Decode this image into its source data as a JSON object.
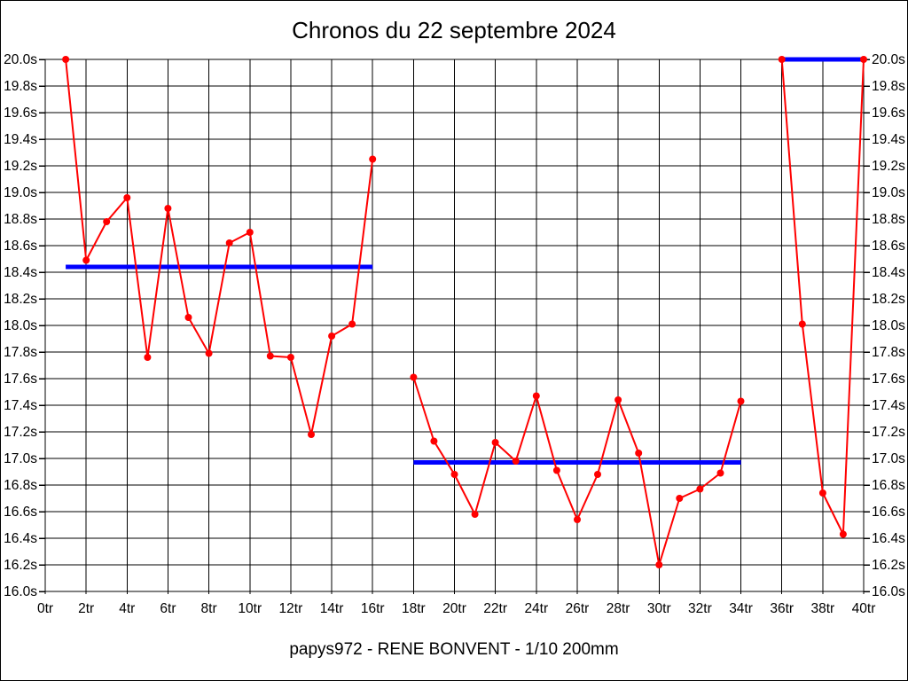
{
  "header": {
    "title": "Chronos du 22 septembre 2024"
  },
  "footer": {
    "caption": "papys972 - RENE BONVENT - 1/10 200mm"
  },
  "chart_data": {
    "type": "line",
    "title": "Chronos du 22 septembre 2024",
    "caption": "papys972 - RENE BONVENT - 1/10 200mm",
    "x_unit": "tr",
    "y_unit": "s",
    "xlim": [
      0,
      40
    ],
    "ylim": [
      16.0,
      20.0
    ],
    "x_tick_step": 2,
    "y_tick_step": 0.2,
    "grid": true,
    "legend": "none",
    "x_tick_labels": [
      "0tr",
      "2tr",
      "4tr",
      "6tr",
      "8tr",
      "10tr",
      "12tr",
      "14tr",
      "16tr",
      "18tr",
      "20tr",
      "22tr",
      "24tr",
      "26tr",
      "28tr",
      "30tr",
      "32tr",
      "34tr",
      "36tr",
      "38tr",
      "40tr"
    ],
    "y_tick_labels": [
      "20.0s",
      "19.8s",
      "19.6s",
      "19.4s",
      "19.2s",
      "19.0s",
      "18.8s",
      "18.6s",
      "18.4s",
      "18.2s",
      "18.0s",
      "17.8s",
      "17.6s",
      "17.4s",
      "17.2s",
      "17.0s",
      "16.8s",
      "16.6s",
      "16.4s",
      "16.2s",
      "16.0s"
    ],
    "colors": {
      "series": "#ff0000",
      "reference": "#0000ff",
      "grid": "#000000",
      "text": "#000000"
    },
    "series": [
      {
        "name": "stint-1-lap-times",
        "points": [
          [
            1,
            20.0
          ],
          [
            2,
            18.49
          ],
          [
            3,
            18.78
          ],
          [
            4,
            18.96
          ],
          [
            5,
            17.76
          ],
          [
            6,
            18.88
          ],
          [
            7,
            18.06
          ],
          [
            8,
            17.79
          ],
          [
            9,
            18.62
          ],
          [
            10,
            18.7
          ],
          [
            11,
            17.77
          ],
          [
            12,
            17.76
          ],
          [
            13,
            17.18
          ],
          [
            14,
            17.92
          ],
          [
            15,
            18.01
          ],
          [
            16,
            19.25
          ]
        ]
      },
      {
        "name": "stint-2-lap-times",
        "points": [
          [
            18,
            17.61
          ],
          [
            19,
            17.13
          ],
          [
            20,
            16.88
          ],
          [
            21,
            16.58
          ],
          [
            22,
            17.12
          ],
          [
            23,
            16.98
          ],
          [
            24,
            17.47
          ],
          [
            25,
            16.91
          ],
          [
            26,
            16.54
          ],
          [
            27,
            16.88
          ],
          [
            28,
            17.44
          ],
          [
            29,
            17.04
          ],
          [
            30,
            16.2
          ],
          [
            31,
            16.7
          ],
          [
            32,
            16.77
          ],
          [
            33,
            16.89
          ],
          [
            34,
            17.43
          ]
        ]
      },
      {
        "name": "stint-3-lap-times",
        "points": [
          [
            36,
            20.0
          ],
          [
            37,
            18.01
          ],
          [
            38,
            16.74
          ],
          [
            39,
            16.43
          ],
          [
            40,
            20.0
          ]
        ]
      }
    ],
    "reference_lines": [
      {
        "name": "stint-1-reference-line",
        "value": 18.44,
        "x_from": 1,
        "x_to": 16
      },
      {
        "name": "stint-2-reference-line",
        "value": 16.97,
        "x_from": 18,
        "x_to": 34
      },
      {
        "name": "stint-3-reference-line",
        "value": 20.0,
        "x_from": 36,
        "x_to": 40
      }
    ]
  }
}
